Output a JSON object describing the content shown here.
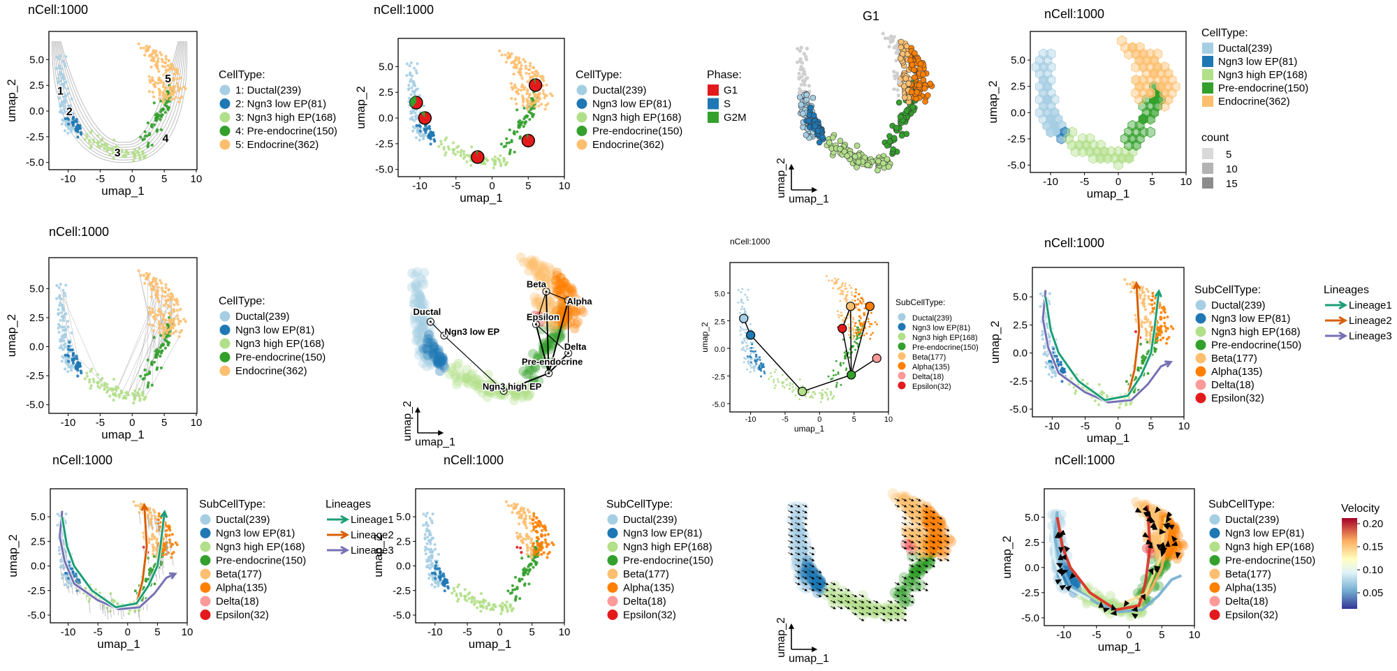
{
  "colors": {
    "ductal": "#a6cee3",
    "ngn3_low": "#1f78b4",
    "ngn3_high": "#b2df8a",
    "pre_endo": "#33a02c",
    "endocrine": "#fdbf6f",
    "beta": "#fdbf6f",
    "alpha": "#ff7f00",
    "delta": "#fb9a99",
    "epsilon": "#e31a1c",
    "g1": "#e31a1c",
    "s": "#1f78b4",
    "g2m": "#33a02c",
    "lineage1": "#1b9e77",
    "lineage2": "#d95f02",
    "lineage3": "#7570b3",
    "contour": "#bdbdbd",
    "axis": "#000000"
  },
  "chart_data": [
    {
      "type": "scatter",
      "title": "nCell:1000",
      "xlabel": "umap_1",
      "ylabel": "umap_2",
      "xlim": [
        -13,
        10
      ],
      "ylim": [
        -5.5,
        7
      ],
      "xticks": [
        "-10",
        "-5",
        "0",
        "5",
        "10"
      ],
      "yticks": [
        "-5.0",
        "-2.5",
        "0.0",
        "2.5",
        "5.0"
      ],
      "legend": [
        {
          "title": "CellType:",
          "items": [
            "1: Ductal(239)",
            "2: Ngn3 low EP(81)",
            "3: Ngn3 high EP(168)",
            "4: Pre-endocrine(150)",
            "5: Endocrine(362)"
          ]
        }
      ],
      "point_labels": [
        "1",
        "2",
        "3",
        "4",
        "5"
      ],
      "series": [
        {
          "name": "Ductal",
          "count": 239
        },
        {
          "name": "Ngn3 low EP",
          "count": 81
        },
        {
          "name": "Ngn3 high EP",
          "count": 168
        },
        {
          "name": "Pre-endocrine",
          "count": 150
        },
        {
          "name": "Endocrine",
          "count": 362
        }
      ]
    },
    {
      "type": "scatter",
      "title": "nCell:1000",
      "xlabel": "umap_1",
      "ylabel": "umap_2",
      "xlim": [
        -13,
        10
      ],
      "ylim": [
        -5.5,
        7
      ],
      "xticks": [
        "-10",
        "-5",
        "0",
        "5",
        "10"
      ],
      "yticks": [
        "-5.0",
        "-2.5",
        "0.0",
        "2.5",
        "5.0"
      ],
      "legend": [
        {
          "title": "CellType:",
          "items": [
            "Ductal(239)",
            "Ngn3 low EP(81)",
            "Ngn3 high EP(168)",
            "Pre-endocrine(150)",
            "Endocrine(362)"
          ]
        },
        {
          "title": "Phase:",
          "items": [
            "G1",
            "S",
            "G2M"
          ]
        }
      ]
    },
    {
      "type": "scatter",
      "title": "G1",
      "xlabel": "umap_1",
      "ylabel": "umap_2",
      "legend": []
    },
    {
      "type": "heatmap",
      "title": "nCell:1000",
      "xlabel": "umap_1",
      "ylabel": "umap_2",
      "xlim": [
        -13,
        10
      ],
      "ylim": [
        -5.5,
        7
      ],
      "xticks": [
        "-10",
        "-5",
        "0",
        "5",
        "10"
      ],
      "yticks": [
        "-5.0",
        "-2.5",
        "0.0",
        "2.5",
        "5.0"
      ],
      "legend": [
        {
          "title": "CellType:",
          "items": [
            "Ductal(239)",
            "Ngn3 low EP(81)",
            "Ngn3 high EP(168)",
            "Pre-endocrine(150)",
            "Endocrine(362)"
          ]
        },
        {
          "title": "count",
          "items": [
            "5",
            "10",
            "15"
          ]
        }
      ]
    },
    {
      "type": "scatter",
      "title": "nCell:1000",
      "xlabel": "umap_1",
      "ylabel": "umap_2",
      "xlim": [
        -13,
        10
      ],
      "ylim": [
        -5.5,
        7
      ],
      "xticks": [
        "-10",
        "-5",
        "0",
        "5",
        "10"
      ],
      "yticks": [
        "-5.0",
        "-2.5",
        "0.0",
        "2.5",
        "5.0"
      ],
      "legend": [
        {
          "title": "CellType:",
          "items": [
            "Ductal(239)",
            "Ngn3 low EP(81)",
            "Ngn3 high EP(168)",
            "Pre-endocrine(150)",
            "Endocrine(362)"
          ]
        }
      ]
    },
    {
      "type": "scatter",
      "title": "",
      "xlabel": "umap_1",
      "ylabel": "umap_2",
      "node_labels": [
        "Ductal",
        "Ngn3 low EP",
        "Ngn3 high EP",
        "Pre-endocrine",
        "Beta",
        "Alpha",
        "Epsilon",
        "Delta"
      ],
      "legend": []
    },
    {
      "type": "scatter",
      "title": "nCell:1000",
      "xlabel": "umap_1",
      "ylabel": "umap_2",
      "xlim": [
        -13,
        10
      ],
      "ylim": [
        -5.5,
        7
      ],
      "xticks": [
        "-10",
        "-5",
        "0",
        "5",
        "10"
      ],
      "yticks": [
        "-5.0",
        "-2.5",
        "0.0",
        "2.5",
        "5.0"
      ],
      "legend": [
        {
          "title": "SubCellType:",
          "items": [
            "Ductal(239)",
            "Ngn3 low EP(81)",
            "Ngn3 high EP(168)",
            "Pre-endocrine(150)",
            "Beta(177)",
            "Alpha(135)",
            "Delta(18)",
            "Epsilon(32)"
          ]
        }
      ]
    },
    {
      "type": "line",
      "title": "nCell:1000",
      "xlabel": "umap_1",
      "ylabel": "umap_2",
      "xlim": [
        -13,
        10
      ],
      "ylim": [
        -5.5,
        7
      ],
      "xticks": [
        "-10",
        "-5",
        "0",
        "5",
        "10"
      ],
      "yticks": [
        "-5.0",
        "-2.5",
        "0.0",
        "2.5",
        "5.0"
      ],
      "legend": [
        {
          "title": "SubCellType:",
          "items": [
            "Ductal(239)",
            "Ngn3 low EP(81)",
            "Ngn3 high EP(168)",
            "Pre-endocrine(150)",
            "Beta(177)",
            "Alpha(135)",
            "Delta(18)",
            "Epsilon(32)"
          ]
        },
        {
          "title": "Lineages",
          "items": [
            "Lineage1",
            "Lineage2",
            "Lineage3"
          ]
        }
      ]
    },
    {
      "type": "line",
      "title": "nCell:1000",
      "xlabel": "umap_1",
      "ylabel": "umap_2",
      "xlim": [
        -13,
        10
      ],
      "ylim": [
        -5.5,
        7
      ],
      "xticks": [
        "-10",
        "-5",
        "0",
        "5",
        "10"
      ],
      "yticks": [
        "-5.0",
        "-2.5",
        "0.0",
        "2.5",
        "5.0"
      ],
      "legend": [
        {
          "title": "SubCellType:",
          "items": [
            "Ductal(239)",
            "Ngn3 low EP(81)",
            "Ngn3 high EP(168)",
            "Pre-endocrine(150)",
            "Beta(177)",
            "Alpha(135)",
            "Delta(18)",
            "Epsilon(32)"
          ]
        },
        {
          "title": "Lineages",
          "items": [
            "Lineage1",
            "Lineage2",
            "Lineage3"
          ]
        }
      ]
    },
    {
      "type": "scatter",
      "title": "nCell:1000",
      "xlabel": "umap_1",
      "ylabel": "umap_2",
      "xlim": [
        -13,
        10
      ],
      "ylim": [
        -5.5,
        7
      ],
      "xticks": [
        "-10",
        "-5",
        "0",
        "5",
        "10"
      ],
      "yticks": [
        "-5.0",
        "-2.5",
        "0.0",
        "2.5",
        "5.0"
      ],
      "legend": [
        {
          "title": "SubCellType:",
          "items": [
            "Ductal(239)",
            "Ngn3 low EP(81)",
            "Ngn3 high EP(168)",
            "Pre-endocrine(150)",
            "Beta(177)",
            "Alpha(135)",
            "Delta(18)",
            "Epsilon(32)"
          ]
        }
      ]
    },
    {
      "type": "scatter",
      "title": "",
      "xlabel": "umap_1",
      "ylabel": "umap_2",
      "legend": []
    },
    {
      "type": "scatter",
      "title": "nCell:1000",
      "xlabel": "umap_1",
      "ylabel": "umap_2",
      "xlim": [
        -13,
        10
      ],
      "ylim": [
        -5.5,
        7
      ],
      "xticks": [
        "-10",
        "-5",
        "0",
        "5",
        "10"
      ],
      "yticks": [
        "-5.0",
        "-2.5",
        "0.0",
        "2.5",
        "5.0"
      ],
      "legend": [
        {
          "title": "SubCellType:",
          "items": [
            "Ductal(239)",
            "Ngn3 low EP(81)",
            "Ngn3 high EP(168)",
            "Pre-endocrine(150)",
            "Beta(177)",
            "Alpha(135)",
            "Delta(18)",
            "Epsilon(32)"
          ]
        },
        {
          "title": "Velocity",
          "items": [
            "0.20",
            "0.15",
            "0.10",
            "0.05"
          ]
        }
      ]
    }
  ]
}
